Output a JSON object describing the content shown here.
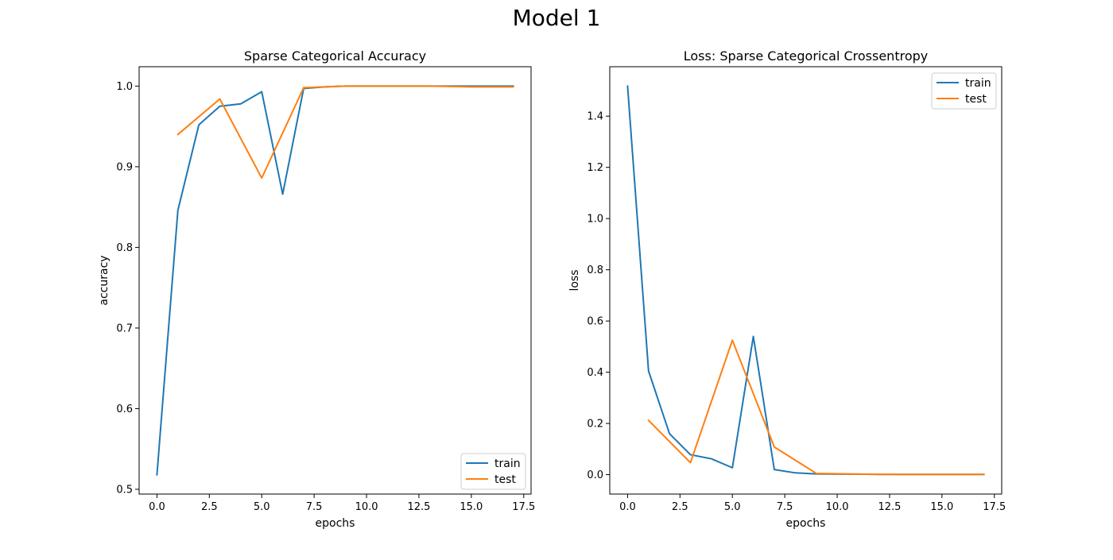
{
  "figure": {
    "title": "Model 1"
  },
  "chart_data": [
    {
      "type": "line",
      "title": "Sparse Categorical Accuracy",
      "xlabel": "epochs",
      "ylabel": "accuracy",
      "xlim": [
        -0.85,
        17.85
      ],
      "ylim": [
        0.4941,
        1.024
      ],
      "xticks": [
        0.0,
        2.5,
        5.0,
        7.5,
        10.0,
        12.5,
        15.0,
        17.5
      ],
      "xtick_labels": [
        "0.0",
        "2.5",
        "5.0",
        "7.5",
        "10.0",
        "12.5",
        "15.0",
        "17.5"
      ],
      "yticks": [
        0.5,
        0.6,
        0.7,
        0.8,
        0.9,
        1.0
      ],
      "ytick_labels": [
        "0.5",
        "0.6",
        "0.7",
        "0.8",
        "0.9",
        "1.0"
      ],
      "legend_position": "lower right",
      "grid": false,
      "series": [
        {
          "name": "train",
          "color": "#1f77b4",
          "x": [
            0,
            1,
            2,
            3,
            4,
            5,
            6,
            7,
            8,
            9,
            10,
            11,
            12,
            13,
            14,
            15,
            16,
            17
          ],
          "y": [
            0.518,
            0.846,
            0.952,
            0.975,
            0.978,
            0.993,
            0.866,
            0.997,
            0.999,
            1.0,
            1.0,
            1.0,
            1.0,
            1.0,
            1.0,
            1.0,
            1.0,
            1.0
          ]
        },
        {
          "name": "test",
          "color": "#ff7f0e",
          "x": [
            1,
            3,
            5,
            7,
            9,
            11,
            13,
            15,
            17
          ],
          "y": [
            0.94,
            0.984,
            0.886,
            0.998,
            1.0,
            1.0,
            1.0,
            0.999,
            0.999
          ]
        }
      ]
    },
    {
      "type": "line",
      "title": "Loss: Sparse Categorical Crossentropy",
      "xlabel": "epochs",
      "ylabel": "loss",
      "xlim": [
        -0.85,
        17.85
      ],
      "ylim": [
        -0.0758,
        1.593
      ],
      "xticks": [
        0.0,
        2.5,
        5.0,
        7.5,
        10.0,
        12.5,
        15.0,
        17.5
      ],
      "xtick_labels": [
        "0.0",
        "2.5",
        "5.0",
        "7.5",
        "10.0",
        "12.5",
        "15.0",
        "17.5"
      ],
      "yticks": [
        0.0,
        0.2,
        0.4,
        0.6,
        0.8,
        1.0,
        1.2,
        1.4
      ],
      "ytick_labels": [
        "0.0",
        "0.2",
        "0.4",
        "0.6",
        "0.8",
        "1.0",
        "1.2",
        "1.4"
      ],
      "legend_position": "upper right",
      "grid": false,
      "series": [
        {
          "name": "train",
          "color": "#1f77b4",
          "x": [
            0,
            1,
            2,
            3,
            4,
            5,
            6,
            7,
            8,
            9,
            10,
            11,
            12,
            13,
            14,
            15,
            16,
            17
          ],
          "y": [
            1.517,
            0.405,
            0.16,
            0.078,
            0.062,
            0.027,
            0.54,
            0.02,
            0.007,
            0.003,
            0.002,
            0.002,
            0.001,
            0.001,
            0.001,
            0.001,
            0.001,
            0.001
          ]
        },
        {
          "name": "test",
          "color": "#ff7f0e",
          "x": [
            1,
            3,
            5,
            7,
            9,
            11,
            13,
            15,
            17
          ],
          "y": [
            0.212,
            0.047,
            0.525,
            0.108,
            0.005,
            0.002,
            0.001,
            0.001,
            0.001
          ]
        }
      ]
    }
  ]
}
